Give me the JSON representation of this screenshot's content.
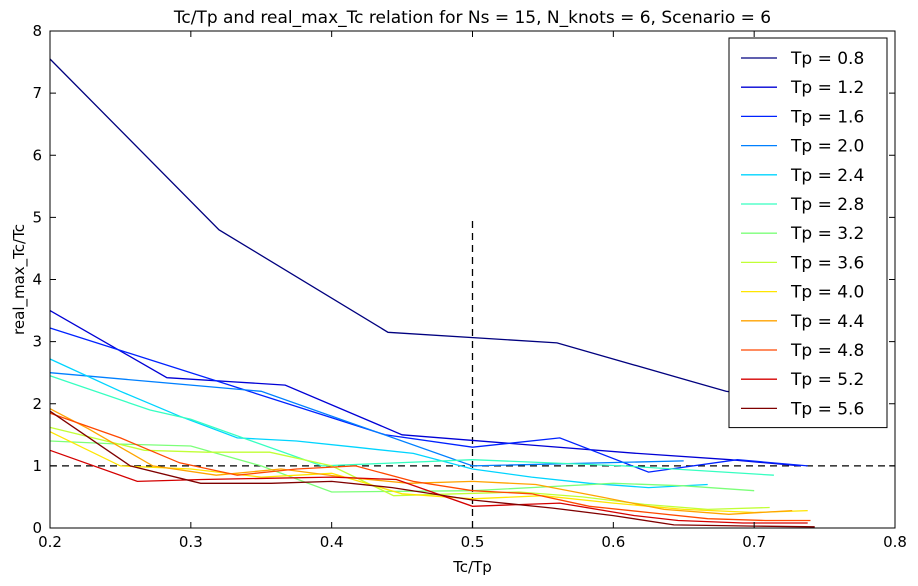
{
  "chart_data": {
    "type": "line",
    "title": "Tc/Tp and real_max_Tc relation for Ns = 15, N_knots = 6, Scenario = 6",
    "xlabel": "Tc/Tp",
    "ylabel": "real_max_Tc/Tc",
    "xlim": [
      0.2,
      0.8
    ],
    "ylim": [
      0,
      8
    ],
    "xticks": [
      "0.2",
      "0.3",
      "0.4",
      "0.5",
      "0.6",
      "0.7",
      "0.8"
    ],
    "yticks": [
      "0",
      "1",
      "2",
      "3",
      "4",
      "5",
      "6",
      "7",
      "8"
    ],
    "legend_position": "top-right",
    "reference_lines": [
      {
        "orientation": "horizontal",
        "value": 1,
        "style": "dashed",
        "color": "#000000"
      },
      {
        "orientation": "vertical",
        "value": 0.5,
        "range": [
          0,
          5
        ],
        "style": "dashed",
        "color": "#000000"
      }
    ],
    "series": [
      {
        "name": "Tp = 0.8",
        "color": "#00007f",
        "x": [
          0.2,
          0.32,
          0.44,
          0.56,
          0.68,
          0.74
        ],
        "y": [
          7.55,
          4.8,
          3.15,
          2.98,
          2.2,
          2.0
        ]
      },
      {
        "name": "Tp = 1.2",
        "color": "#0000d5",
        "x": [
          0.2,
          0.283,
          0.367,
          0.45,
          0.533,
          0.617,
          0.683,
          0.733
        ],
        "y": [
          3.5,
          2.42,
          2.3,
          1.5,
          1.35,
          1.2,
          1.1,
          1.0
        ]
      },
      {
        "name": "Tp = 1.6",
        "color": "#0022ff",
        "x": [
          0.2,
          0.3,
          0.438,
          0.5,
          0.562,
          0.625,
          0.688,
          0.738
        ],
        "y": [
          3.22,
          2.5,
          1.5,
          1.3,
          1.45,
          0.9,
          1.1,
          1.0
        ]
      },
      {
        "name": "Tp = 2.0",
        "color": "#0080ff",
        "x": [
          0.2,
          0.35,
          0.5,
          0.65
        ],
        "y": [
          2.5,
          2.2,
          1.0,
          1.08
        ]
      },
      {
        "name": "Tp = 2.4",
        "color": "#00d4ff",
        "x": [
          0.2,
          0.25,
          0.292,
          0.333,
          0.375,
          0.417,
          0.458,
          0.5,
          0.542,
          0.583,
          0.625,
          0.667
        ],
        "y": [
          2.72,
          2.2,
          1.8,
          1.45,
          1.4,
          1.3,
          1.2,
          0.95,
          0.82,
          0.72,
          0.65,
          0.7
        ]
      },
      {
        "name": "Tp = 2.8",
        "color": "#36ffc1",
        "x": [
          0.2,
          0.271,
          0.3,
          0.393,
          0.5,
          0.607,
          0.714
        ],
        "y": [
          2.45,
          1.9,
          1.75,
          1.0,
          1.1,
          1.0,
          0.85
        ]
      },
      {
        "name": "Tp = 3.2",
        "color": "#7cff79",
        "x": [
          0.2,
          0.25,
          0.3,
          0.35,
          0.4,
          0.45,
          0.5,
          0.55,
          0.6,
          0.65,
          0.7
        ],
        "y": [
          1.4,
          1.35,
          1.32,
          1.0,
          0.58,
          0.59,
          0.6,
          0.66,
          0.72,
          0.68,
          0.6
        ]
      },
      {
        "name": "Tp = 3.6",
        "color": "#c1ff36",
        "x": [
          0.2,
          0.267,
          0.311,
          0.356,
          0.4,
          0.444,
          0.489,
          0.533,
          0.578,
          0.622,
          0.667,
          0.711
        ],
        "y": [
          1.62,
          1.25,
          1.22,
          1.22,
          1.0,
          0.52,
          0.55,
          0.58,
          0.5,
          0.38,
          0.3,
          0.33
        ]
      },
      {
        "name": "Tp = 4.0",
        "color": "#ffe500",
        "x": [
          0.2,
          0.25,
          0.3,
          0.35,
          0.4,
          0.45,
          0.5,
          0.55,
          0.6,
          0.65,
          0.7,
          0.738
        ],
        "y": [
          1.55,
          1.0,
          0.95,
          0.82,
          0.88,
          0.55,
          0.47,
          0.52,
          0.4,
          0.3,
          0.25,
          0.28
        ]
      },
      {
        "name": "Tp = 4.4",
        "color": "#ffa300",
        "x": [
          0.2,
          0.227,
          0.273,
          0.318,
          0.364,
          0.409,
          0.455,
          0.5,
          0.545,
          0.591,
          0.636,
          0.682,
          0.727
        ],
        "y": [
          1.92,
          1.6,
          1.0,
          0.85,
          0.95,
          0.82,
          0.72,
          0.75,
          0.7,
          0.5,
          0.3,
          0.22,
          0.28
        ]
      },
      {
        "name": "Tp = 4.8",
        "color": "#ff4800",
        "x": [
          0.2,
          0.25,
          0.292,
          0.333,
          0.375,
          0.417,
          0.458,
          0.5,
          0.542,
          0.583,
          0.625,
          0.667,
          0.708,
          0.74
        ],
        "y": [
          1.85,
          1.45,
          1.05,
          0.85,
          0.95,
          1.0,
          0.75,
          0.6,
          0.55,
          0.35,
          0.25,
          0.15,
          0.12,
          0.12
        ]
      },
      {
        "name": "Tp = 5.2",
        "color": "#d40000",
        "x": [
          0.2,
          0.262,
          0.308,
          0.354,
          0.4,
          0.446,
          0.5,
          0.562,
          0.615,
          0.646,
          0.692,
          0.738
        ],
        "y": [
          1.25,
          0.75,
          0.78,
          0.8,
          0.82,
          0.78,
          0.35,
          0.4,
          0.2,
          0.12,
          0.08,
          0.08
        ]
      },
      {
        "name": "Tp = 5.6",
        "color": "#7f0000",
        "x": [
          0.2,
          0.257,
          0.307,
          0.357,
          0.4,
          0.443,
          0.5,
          0.557,
          0.6,
          0.643,
          0.7,
          0.743
        ],
        "y": [
          1.88,
          1.0,
          0.72,
          0.72,
          0.75,
          0.65,
          0.45,
          0.32,
          0.2,
          0.05,
          0.03,
          0.02
        ]
      }
    ]
  }
}
